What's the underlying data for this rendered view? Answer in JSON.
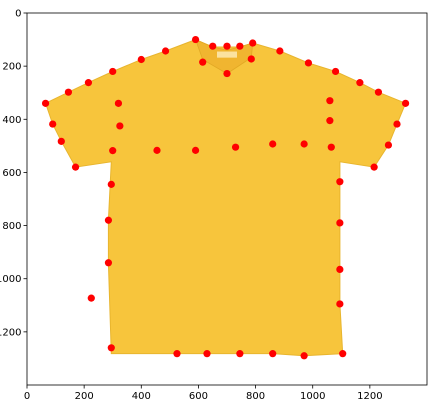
{
  "chart_data": {
    "type": "scatter",
    "title": "",
    "xlabel": "",
    "ylabel": "",
    "xlim": [
      0,
      1400
    ],
    "ylim": [
      1400,
      0
    ],
    "x_ticks": [
      0,
      200,
      400,
      600,
      800,
      1000,
      1200
    ],
    "y_ticks": [
      0,
      200,
      400,
      600,
      800,
      1000,
      1200
    ],
    "x_tick_labels": [
      "0",
      "200",
      "400",
      "600",
      "800",
      "1000",
      "1200"
    ],
    "y_tick_labels": [
      "0",
      "200",
      "400",
      "600",
      "800",
      "1000",
      "1200"
    ],
    "grid": false,
    "legend": "none",
    "background_image": "yellow-tshirt",
    "point_color": "#ff0000",
    "garment_color": "#f7c53c",
    "points": [
      {
        "x": 590,
        "y": 100
      },
      {
        "x": 650,
        "y": 125
      },
      {
        "x": 700,
        "y": 125
      },
      {
        "x": 745,
        "y": 125
      },
      {
        "x": 790,
        "y": 113
      },
      {
        "x": 485,
        "y": 143
      },
      {
        "x": 885,
        "y": 143
      },
      {
        "x": 400,
        "y": 175
      },
      {
        "x": 615,
        "y": 185
      },
      {
        "x": 785,
        "y": 173
      },
      {
        "x": 700,
        "y": 228
      },
      {
        "x": 985,
        "y": 188
      },
      {
        "x": 300,
        "y": 220
      },
      {
        "x": 1080,
        "y": 220
      },
      {
        "x": 215,
        "y": 262
      },
      {
        "x": 1165,
        "y": 262
      },
      {
        "x": 145,
        "y": 298
      },
      {
        "x": 1230,
        "y": 298
      },
      {
        "x": 65,
        "y": 340
      },
      {
        "x": 320,
        "y": 340
      },
      {
        "x": 1060,
        "y": 330
      },
      {
        "x": 1325,
        "y": 340
      },
      {
        "x": 90,
        "y": 418
      },
      {
        "x": 325,
        "y": 425
      },
      {
        "x": 1060,
        "y": 405
      },
      {
        "x": 1295,
        "y": 418
      },
      {
        "x": 120,
        "y": 483
      },
      {
        "x": 1265,
        "y": 497
      },
      {
        "x": 860,
        "y": 493
      },
      {
        "x": 970,
        "y": 493
      },
      {
        "x": 730,
        "y": 505
      },
      {
        "x": 1065,
        "y": 505
      },
      {
        "x": 455,
        "y": 517
      },
      {
        "x": 590,
        "y": 517
      },
      {
        "x": 300,
        "y": 518
      },
      {
        "x": 1095,
        "y": 635
      },
      {
        "x": 170,
        "y": 580
      },
      {
        "x": 1215,
        "y": 580
      },
      {
        "x": 295,
        "y": 645
      },
      {
        "x": 285,
        "y": 780
      },
      {
        "x": 1095,
        "y": 790
      },
      {
        "x": 285,
        "y": 940
      },
      {
        "x": 1095,
        "y": 965
      },
      {
        "x": 225,
        "y": 1073
      },
      {
        "x": 1095,
        "y": 1095
      },
      {
        "x": 295,
        "y": 1260
      },
      {
        "x": 525,
        "y": 1282
      },
      {
        "x": 630,
        "y": 1282
      },
      {
        "x": 745,
        "y": 1282
      },
      {
        "x": 860,
        "y": 1282
      },
      {
        "x": 970,
        "y": 1290
      },
      {
        "x": 1105,
        "y": 1282
      }
    ]
  }
}
